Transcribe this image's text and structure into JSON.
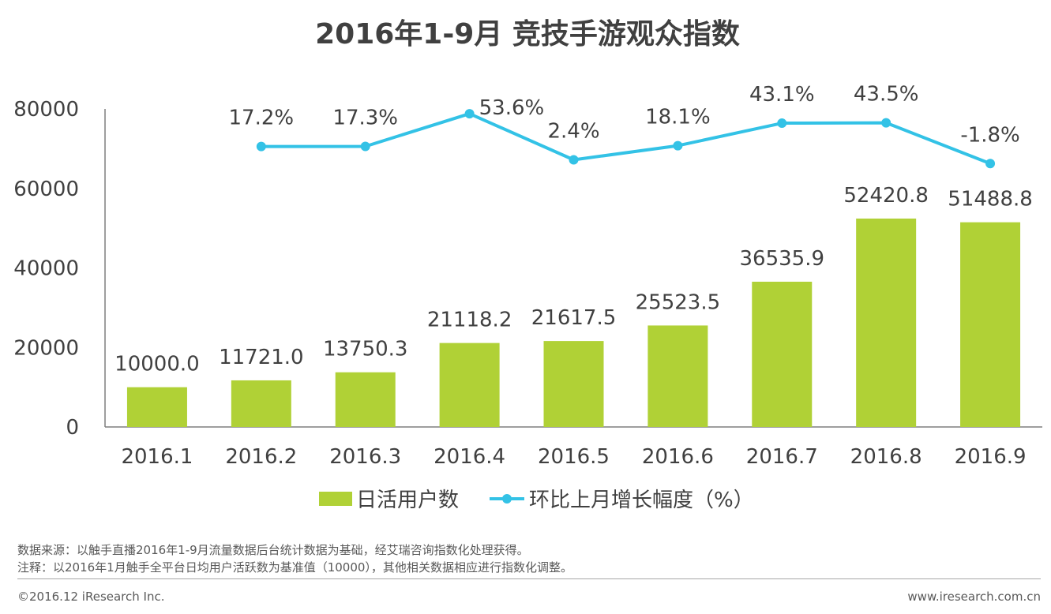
{
  "chart_data": {
    "type": "bar",
    "title": "2016年1-9月 竞技手游观众指数",
    "categories": [
      "2016.1",
      "2016.2",
      "2016.3",
      "2016.4",
      "2016.5",
      "2016.6",
      "2016.7",
      "2016.8",
      "2016.9"
    ],
    "series": [
      {
        "name": "日活用户数",
        "type": "bar",
        "axis": "left",
        "color": "#b0d136",
        "values": [
          10000.0,
          11721.0,
          13750.3,
          21118.2,
          21617.5,
          25523.5,
          36535.9,
          52420.8,
          51488.8
        ],
        "labels": [
          "10000.0",
          "11721.0",
          "13750.3",
          "21118.2",
          "21617.5",
          "25523.5",
          "36535.9",
          "52420.8",
          "51488.8"
        ]
      },
      {
        "name": "环比上月增长幅度（%）",
        "type": "line",
        "axis": "right-hidden",
        "color": "#33c2e6",
        "values": [
          null,
          17.2,
          17.3,
          53.6,
          2.4,
          18.1,
          43.1,
          43.5,
          -1.8
        ],
        "labels": [
          "",
          "17.2%",
          "17.3%",
          "53.6%",
          "2.4%",
          "18.1%",
          "43.1%",
          "43.5%",
          "-1.8%"
        ]
      }
    ],
    "ylim": [
      0,
      80000
    ],
    "yticks": [
      "0",
      "20000",
      "40000",
      "60000",
      "80000"
    ],
    "legend_position": "bottom",
    "grid": false
  },
  "notes": {
    "source": "数据来源：以触手直播2016年1-9月流量数据后台统计数据为基础，经艾瑞咨询指数化处理获得。",
    "remark": "注释：以2016年1月触手全平台日均用户活跃数为基准值（10000），其他相关数据相应进行指数化调整。"
  },
  "footer": {
    "copyright": "©2016.12 iResearch Inc.",
    "website": "www.iresearch.com.cn"
  }
}
